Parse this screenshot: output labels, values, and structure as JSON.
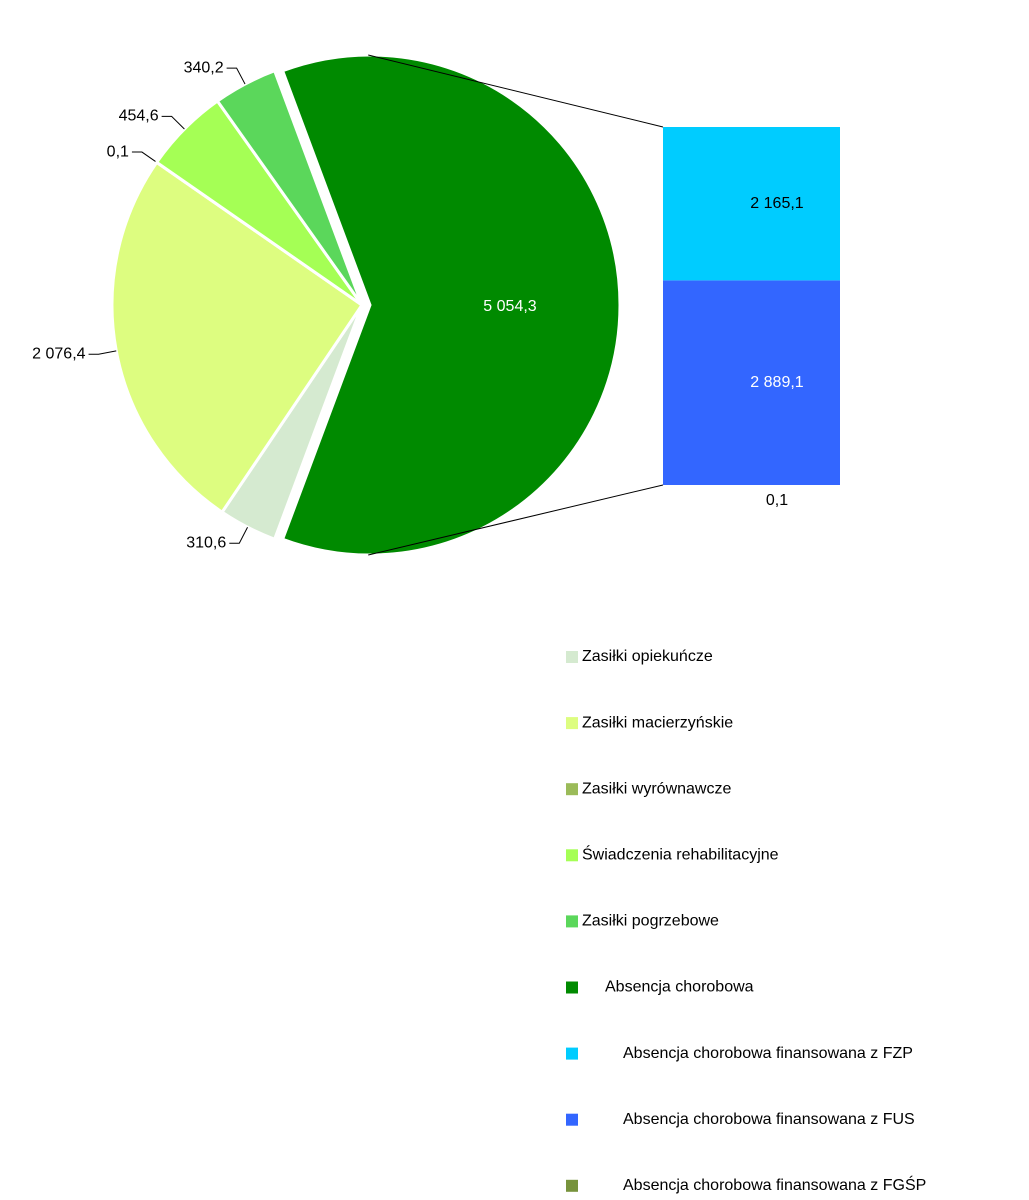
{
  "chart_data": {
    "type": "pie",
    "categories": [
      "Zasiłki opiekuńcze",
      "Zasiłki macierzyńskie",
      "Zasiłki wyrównawcze",
      "Świadczenia rehabilitacyjne",
      "Zasiłki pogrzebowe",
      "Absencja chorobowa"
    ],
    "values": [
      310.6,
      2076.4,
      0.1,
      454.6,
      340.2,
      5054.3
    ],
    "value_labels": [
      "310,6",
      "2 076,4",
      "0,1",
      "454,6",
      "340,2",
      "5 054,3"
    ],
    "colors": [
      "#d5ead0",
      "#ddfd80",
      "#9bbb59",
      "#a5ff55",
      "#5bd75b",
      "#008a00"
    ],
    "secondary": {
      "type": "bar",
      "categories": [
        "Absencja chorobowa finansowana z FZP",
        "Absencja chorobowa finansowana z FUS",
        "Absencja chorobowa finansowana z FGŚP"
      ],
      "values": [
        2165.1,
        2889.1,
        0.1
      ],
      "value_labels": [
        "2 165,1",
        "2 889,1",
        "0,1"
      ],
      "colors": [
        "#00ccff",
        "#3366ff",
        "#77933c"
      ]
    }
  }
}
